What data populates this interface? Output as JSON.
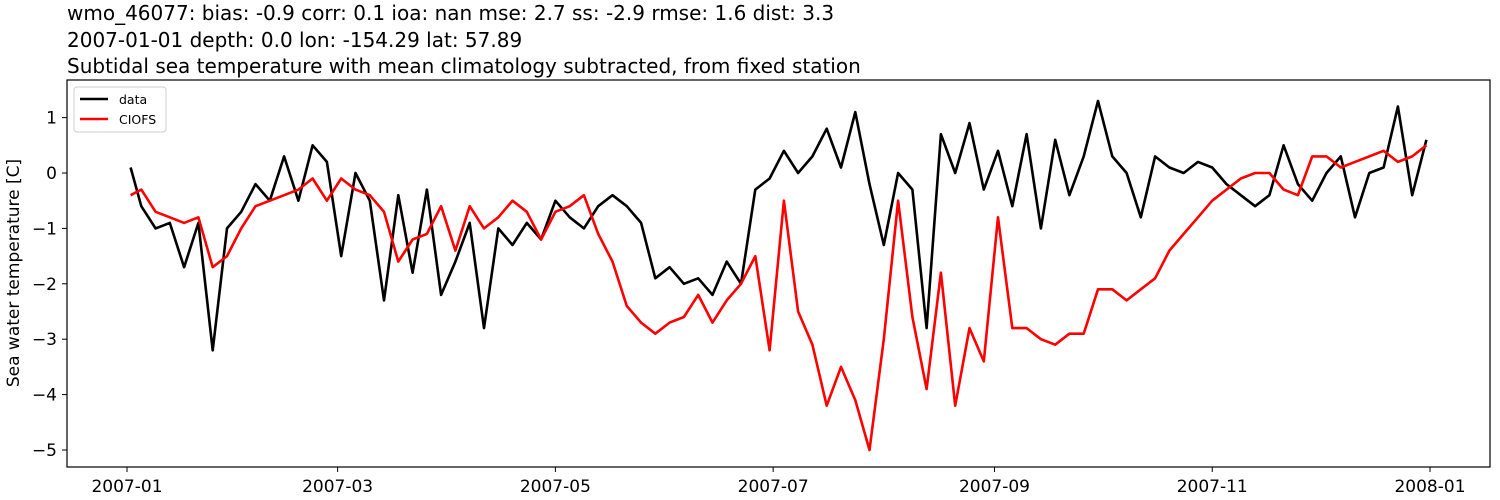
{
  "titles": {
    "line1": "wmo_46077: bias: -0.9  corr: 0.1  ioa: nan  mse: 2.7  ss: -2.9  rmse: 1.6  dist: 3.3",
    "line2": "2007-01-01 depth: 0.0 lon: -154.29 lat: 57.89",
    "line3": "Subtidal sea temperature with mean climatology subtracted, from fixed station"
  },
  "axes": {
    "ylabel": "Sea water temperature [C]",
    "yticks": [
      "1",
      "0",
      "−1",
      "−2",
      "−3",
      "−4",
      "−5"
    ],
    "xticks": [
      "2007-01",
      "2007-03",
      "2007-05",
      "2007-07",
      "2007-09",
      "2007-11",
      "2008-01"
    ]
  },
  "legend": {
    "items": [
      {
        "label": "data",
        "color": "#000000"
      },
      {
        "label": "CIOFS",
        "color": "#ff0000"
      }
    ]
  },
  "colors": {
    "data": "#000000",
    "model": "#ff0000",
    "frame": "#000000",
    "legend_border": "#cccccc"
  },
  "chart_data": {
    "type": "line",
    "title": "wmo_46077: bias: -0.9  corr: 0.1  ioa: nan  mse: 2.7  ss: -2.9  rmse: 1.6  dist: 3.3 / 2007-01-01 depth: 0.0 lon: -154.29 lat: 57.89 / Subtidal sea temperature with mean climatology subtracted, from fixed station",
    "xlabel": "",
    "ylabel": "Sea water temperature [C]",
    "xlim": [
      "2006-12-17",
      "2008-01-17"
    ],
    "ylim": [
      -5.3,
      1.65
    ],
    "xticks": [
      "2007-01",
      "2007-03",
      "2007-05",
      "2007-07",
      "2007-09",
      "2007-11",
      "2008-01"
    ],
    "yticks": [
      1,
      0,
      -1,
      -2,
      -3,
      -4,
      -5
    ],
    "grid": false,
    "legend_position": "upper left",
    "x": [
      "2007-01-02",
      "2007-01-05",
      "2007-01-09",
      "2007-01-13",
      "2007-01-17",
      "2007-01-21",
      "2007-01-25",
      "2007-01-29",
      "2007-02-02",
      "2007-02-06",
      "2007-02-10",
      "2007-02-14",
      "2007-02-18",
      "2007-02-22",
      "2007-02-26",
      "2007-03-02",
      "2007-03-06",
      "2007-03-10",
      "2007-03-14",
      "2007-03-18",
      "2007-03-22",
      "2007-03-26",
      "2007-03-30",
      "2007-04-03",
      "2007-04-07",
      "2007-04-11",
      "2007-04-15",
      "2007-04-19",
      "2007-04-23",
      "2007-04-27",
      "2007-05-01",
      "2007-05-05",
      "2007-05-09",
      "2007-05-13",
      "2007-05-17",
      "2007-05-21",
      "2007-05-25",
      "2007-05-29",
      "2007-06-02",
      "2007-06-06",
      "2007-06-10",
      "2007-06-14",
      "2007-06-18",
      "2007-06-22",
      "2007-06-26",
      "2007-06-30",
      "2007-07-04",
      "2007-07-08",
      "2007-07-12",
      "2007-07-16",
      "2007-07-20",
      "2007-07-24",
      "2007-07-28",
      "2007-08-01",
      "2007-08-05",
      "2007-08-09",
      "2007-08-13",
      "2007-08-17",
      "2007-08-21",
      "2007-08-25",
      "2007-08-29",
      "2007-09-02",
      "2007-09-06",
      "2007-09-10",
      "2007-09-14",
      "2007-09-18",
      "2007-09-22",
      "2007-09-26",
      "2007-09-30",
      "2007-10-04",
      "2007-10-08",
      "2007-10-12",
      "2007-10-16",
      "2007-10-20",
      "2007-10-24",
      "2007-10-28",
      "2007-11-01",
      "2007-11-05",
      "2007-11-09",
      "2007-11-13",
      "2007-11-17",
      "2007-11-21",
      "2007-11-25",
      "2007-11-29",
      "2007-12-03",
      "2007-12-07",
      "2007-12-11",
      "2007-12-15",
      "2007-12-19",
      "2007-12-23",
      "2007-12-27",
      "2007-12-31"
    ],
    "series": [
      {
        "name": "data",
        "color": "#000000",
        "values": [
          0.1,
          -0.6,
          -1.0,
          -0.9,
          -1.7,
          -0.9,
          -3.2,
          -1.0,
          -0.7,
          -0.2,
          -0.5,
          0.3,
          -0.5,
          0.5,
          0.2,
          -1.5,
          0.0,
          -0.5,
          -2.3,
          -0.4,
          -1.8,
          -0.3,
          -2.2,
          -1.6,
          -0.9,
          -2.8,
          -1.0,
          -1.3,
          -0.9,
          -1.2,
          -0.5,
          -0.8,
          -1.0,
          -0.6,
          -0.4,
          -0.6,
          -0.9,
          -1.9,
          -1.7,
          -2.0,
          -1.9,
          -2.2,
          -1.6,
          -2.0,
          -0.3,
          -0.1,
          0.4,
          0.0,
          0.3,
          0.8,
          0.1,
          1.1,
          -0.2,
          -1.3,
          0.0,
          -0.3,
          -2.8,
          0.7,
          0.0,
          0.9,
          -0.3,
          0.4,
          -0.6,
          0.7,
          -1.0,
          0.6,
          -0.4,
          0.3,
          1.3,
          0.3,
          0.0,
          -0.8,
          0.3,
          0.1,
          0.0,
          0.2,
          0.1,
          -0.2,
          -0.4,
          -0.6,
          -0.4,
          0.5,
          -0.2,
          -0.5,
          0.0,
          0.3,
          -0.8,
          0.0,
          0.1,
          1.2,
          -0.4,
          0.6
        ]
      },
      {
        "name": "CIOFS",
        "color": "#ff0000",
        "values": [
          -0.4,
          -0.3,
          -0.7,
          -0.8,
          -0.9,
          -0.8,
          -1.7,
          -1.5,
          -1.0,
          -0.6,
          -0.5,
          -0.4,
          -0.3,
          -0.1,
          -0.5,
          -0.1,
          -0.3,
          -0.4,
          -0.7,
          -1.6,
          -1.2,
          -1.1,
          -0.6,
          -1.4,
          -0.6,
          -1.0,
          -0.8,
          -0.5,
          -0.7,
          -1.2,
          -0.7,
          -0.6,
          -0.4,
          -1.1,
          -1.6,
          -2.4,
          -2.7,
          -2.9,
          -2.7,
          -2.6,
          -2.2,
          -2.7,
          -2.3,
          -2.0,
          -1.5,
          -3.2,
          -0.5,
          -2.5,
          -3.1,
          -4.2,
          -3.5,
          -4.1,
          -5.0,
          -3.0,
          -0.5,
          -2.6,
          -3.9,
          -1.8,
          -4.2,
          -2.8,
          -3.4,
          -0.8,
          -2.8,
          -2.8,
          -3.0,
          -3.1,
          -2.9,
          -2.9,
          -2.1,
          -2.1,
          -2.3,
          -2.1,
          -1.9,
          -1.4,
          -1.1,
          -0.8,
          -0.5,
          -0.3,
          -0.1,
          0.0,
          0.0,
          -0.3,
          -0.4,
          0.3,
          0.3,
          0.1,
          0.2,
          0.3,
          0.4,
          0.2,
          0.3,
          0.5
        ]
      }
    ]
  }
}
